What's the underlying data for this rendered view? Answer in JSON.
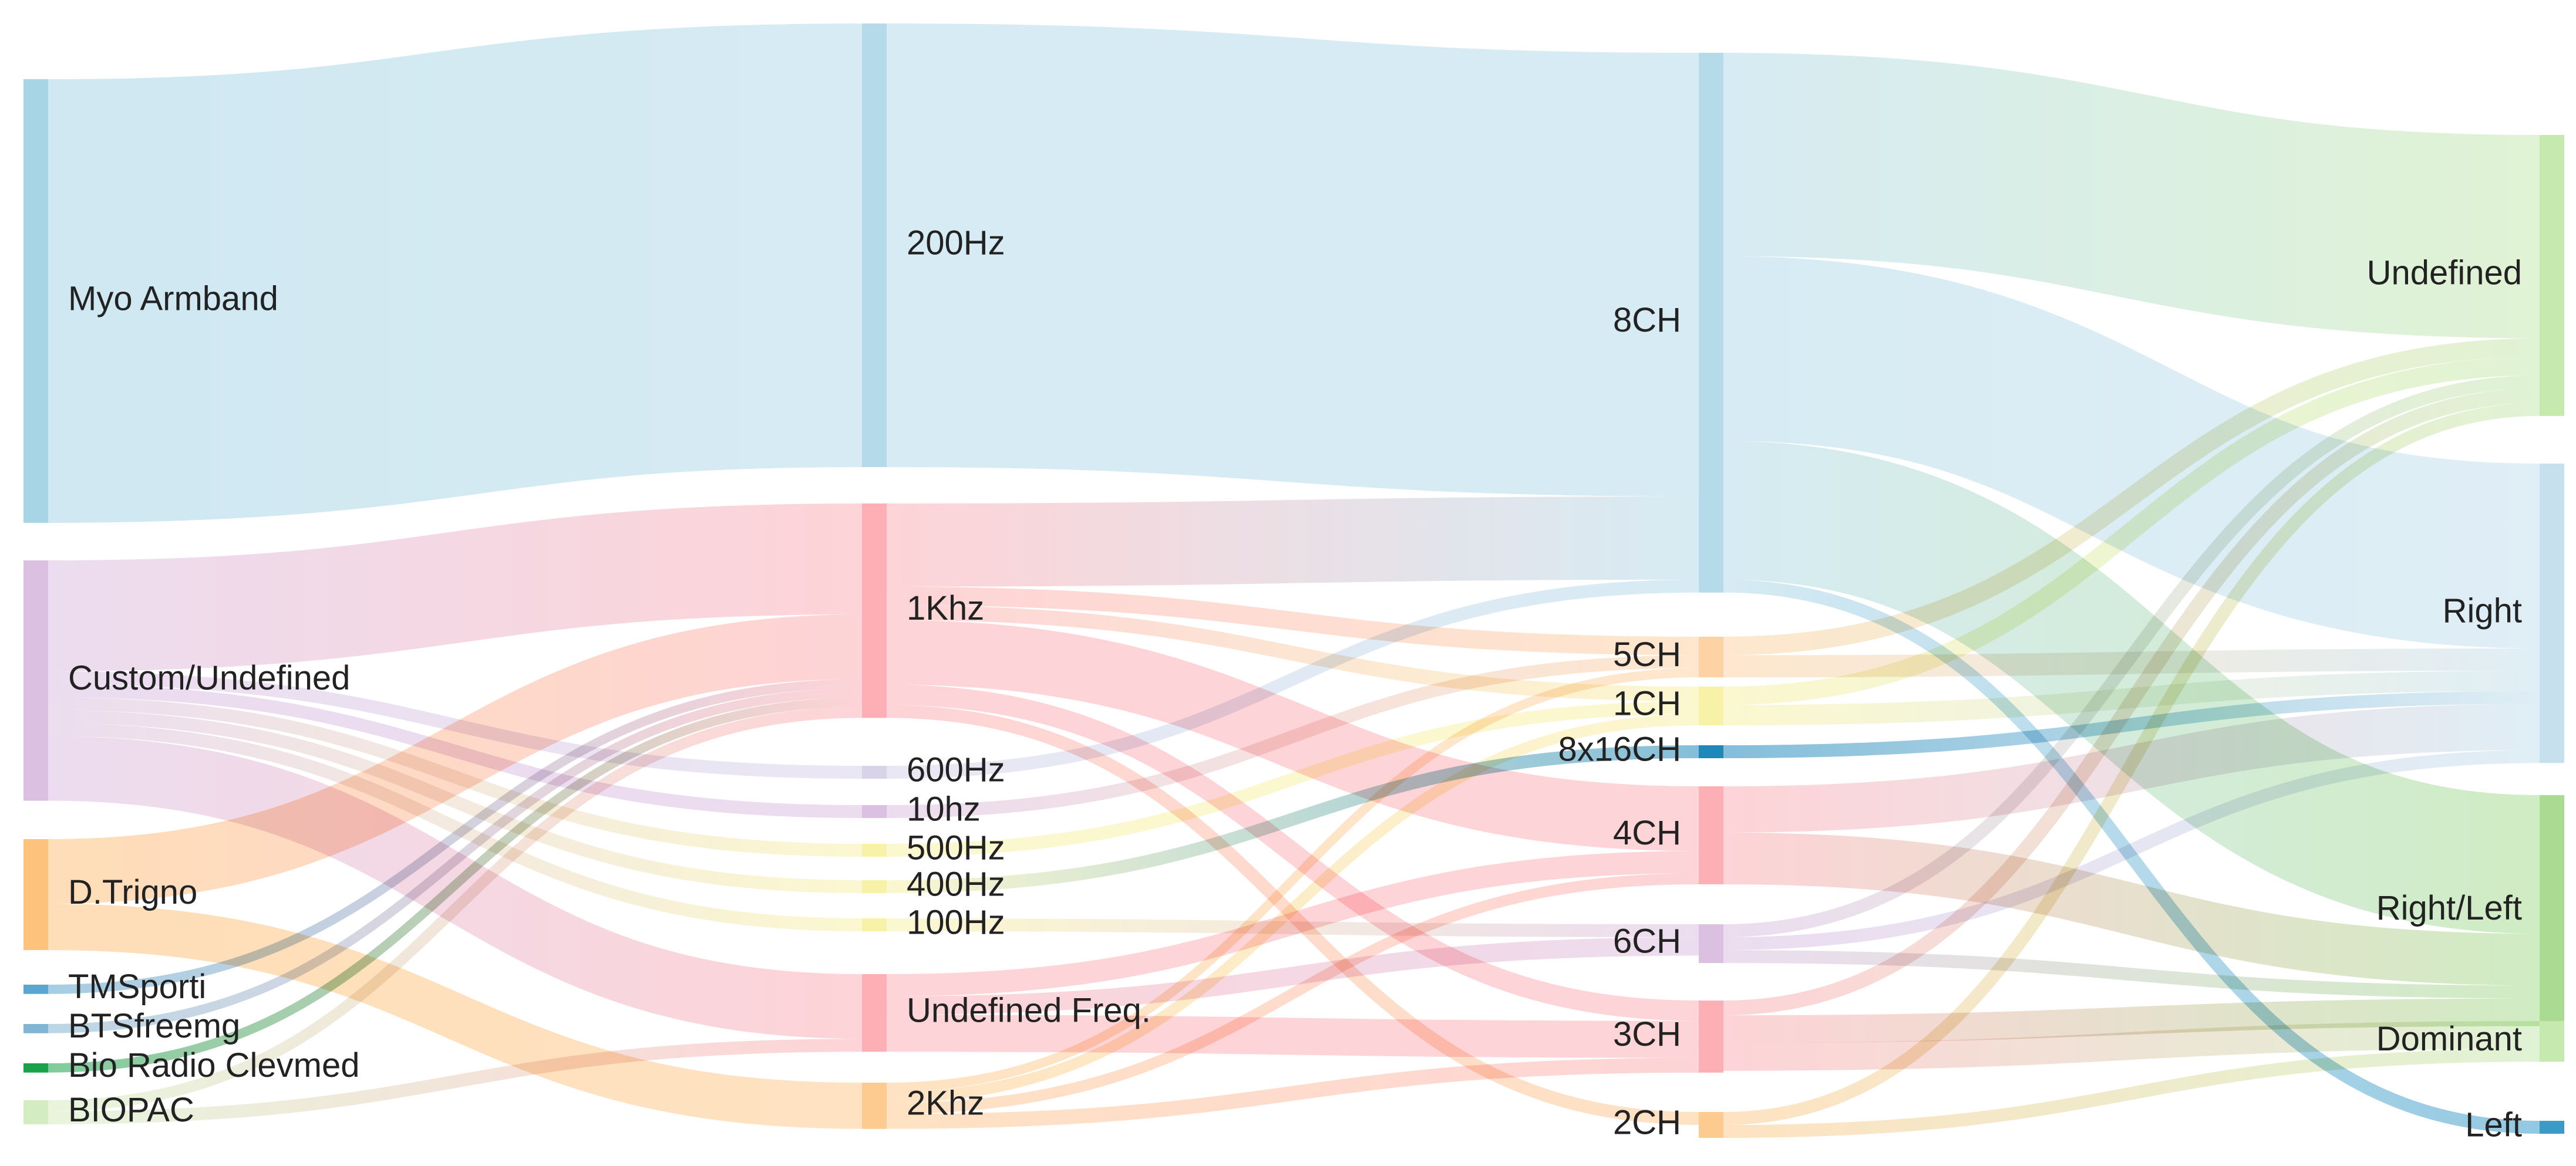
{
  "diagram": {
    "type": "sankey",
    "columns": [
      [
        "Myo Armband",
        "Custom/Undefined",
        "D.Trigno",
        "TMSporti",
        "BTSfreemg",
        "Bio Radio Clevmed",
        "BIOPAC"
      ],
      [
        "200Hz",
        "1Khz",
        "600Hz",
        "10hz",
        "500Hz",
        "400Hz",
        "100Hz",
        "Undefined Freq.",
        "2Khz"
      ],
      [
        "8CH",
        "5CH",
        "1CH",
        "8x16CH",
        "4CH",
        "6CH",
        "3CH",
        "2CH"
      ],
      [
        "Undefined",
        "Right",
        "Right/Left",
        "Dominant",
        "Left"
      ]
    ],
    "nodes": [
      {
        "id": "myo",
        "label": "Myo Armband",
        "color": "#a8d5e6"
      },
      {
        "id": "custom",
        "label": "Custom/Undefined",
        "color": "#dcc0e2"
      },
      {
        "id": "trigno",
        "label": "D.Trigno",
        "color": "#fdc27c"
      },
      {
        "id": "tmsporti",
        "label": "TMSporti",
        "color": "#5aa6d0"
      },
      {
        "id": "btsf",
        "label": "BTSfreemg",
        "color": "#82b5d3"
      },
      {
        "id": "bioradio",
        "label": "Bio Radio Clevmed",
        "color": "#1aa14a"
      },
      {
        "id": "biopac",
        "label": "BIOPAC",
        "color": "#d4edc0"
      },
      {
        "id": "f200",
        "label": "200Hz",
        "color": "#b5dbea"
      },
      {
        "id": "f1k",
        "label": "1Khz",
        "color": "#fcb0b6"
      },
      {
        "id": "f600",
        "label": "600Hz",
        "color": "#d9d3ea"
      },
      {
        "id": "f10",
        "label": "10hz",
        "color": "#dcc0e2"
      },
      {
        "id": "f500",
        "label": "500Hz",
        "color": "#f8f1a8"
      },
      {
        "id": "f400",
        "label": "400Hz",
        "color": "#f8f1a8"
      },
      {
        "id": "f100",
        "label": "100Hz",
        "color": "#f8f1a8"
      },
      {
        "id": "fund",
        "label": "Undefined Freq.",
        "color": "#fcb0b6"
      },
      {
        "id": "f2k",
        "label": "2Khz",
        "color": "#fdcb90"
      },
      {
        "id": "c8",
        "label": "8CH",
        "color": "#b5dbea"
      },
      {
        "id": "c5",
        "label": "5CH",
        "color": "#fdd3a5"
      },
      {
        "id": "c1",
        "label": "1CH",
        "color": "#f8f1a8"
      },
      {
        "id": "c816",
        "label": "8x16CH",
        "color": "#1f88bb"
      },
      {
        "id": "c4",
        "label": "4CH",
        "color": "#fcb0b6"
      },
      {
        "id": "c6",
        "label": "6CH",
        "color": "#dcc0e2"
      },
      {
        "id": "c3",
        "label": "3CH",
        "color": "#fcb0b6"
      },
      {
        "id": "c2",
        "label": "2CH",
        "color": "#fdcb90"
      },
      {
        "id": "undef",
        "label": "Undefined",
        "color": "#c6e9b0"
      },
      {
        "id": "right",
        "label": "Right",
        "color": "#c6e0ee"
      },
      {
        "id": "rl",
        "label": "Right/Left",
        "color": "#a9dc92"
      },
      {
        "id": "dominant",
        "label": "Dominant",
        "color": "#c6e9b0"
      },
      {
        "id": "left",
        "label": "Left",
        "color": "#3a9bc9"
      }
    ],
    "links": [
      {
        "source": "myo",
        "target": "f200",
        "value": 24
      },
      {
        "source": "custom",
        "target": "f1k",
        "value": 6
      },
      {
        "source": "custom",
        "target": "f600",
        "value": 0.7
      },
      {
        "source": "custom",
        "target": "f10",
        "value": 0.7
      },
      {
        "source": "custom",
        "target": "f500",
        "value": 0.7
      },
      {
        "source": "custom",
        "target": "f400",
        "value": 0.7
      },
      {
        "source": "custom",
        "target": "f100",
        "value": 0.7
      },
      {
        "source": "custom",
        "target": "fund",
        "value": 3.5
      },
      {
        "source": "trigno",
        "target": "f1k",
        "value": 3.5
      },
      {
        "source": "trigno",
        "target": "f2k",
        "value": 2.5
      },
      {
        "source": "tmsporti",
        "target": "f1k",
        "value": 0.5
      },
      {
        "source": "btsf",
        "target": "f1k",
        "value": 0.5
      },
      {
        "source": "bioradio",
        "target": "f1k",
        "value": 0.5
      },
      {
        "source": "biopac",
        "target": "fund",
        "value": 0.7
      },
      {
        "source": "biopac",
        "target": "f1k",
        "value": 0.6
      },
      {
        "source": "f200",
        "target": "c8",
        "value": 24
      },
      {
        "source": "f1k",
        "target": "c8",
        "value": 4.5
      },
      {
        "source": "f1k",
        "target": "c5",
        "value": 1
      },
      {
        "source": "f1k",
        "target": "c1",
        "value": 0.8
      },
      {
        "source": "f1k",
        "target": "c4",
        "value": 3.5
      },
      {
        "source": "f1k",
        "target": "c3",
        "value": 1.1
      },
      {
        "source": "f1k",
        "target": "c2",
        "value": 0.7
      },
      {
        "source": "f600",
        "target": "c8",
        "value": 0.7
      },
      {
        "source": "f10",
        "target": "c5",
        "value": 0.7
      },
      {
        "source": "f500",
        "target": "c1",
        "value": 0.7
      },
      {
        "source": "f400",
        "target": "c816",
        "value": 0.7
      },
      {
        "source": "f100",
        "target": "c6",
        "value": 0.7
      },
      {
        "source": "fund",
        "target": "c6",
        "value": 1
      },
      {
        "source": "fund",
        "target": "c3",
        "value": 2
      },
      {
        "source": "fund",
        "target": "c4",
        "value": 1.2
      },
      {
        "source": "f2k",
        "target": "c3",
        "value": 0.8
      },
      {
        "source": "f2k",
        "target": "c1",
        "value": 0.6
      },
      {
        "source": "f2k",
        "target": "c4",
        "value": 0.6
      },
      {
        "source": "f2k",
        "target": "c5",
        "value": 0.5
      },
      {
        "source": "c8",
        "target": "undef",
        "value": 11
      },
      {
        "source": "c8",
        "target": "right",
        "value": 10
      },
      {
        "source": "c8",
        "target": "rl",
        "value": 7.5
      },
      {
        "source": "c8",
        "target": "left",
        "value": 0.7
      },
      {
        "source": "c5",
        "target": "undef",
        "value": 1
      },
      {
        "source": "c5",
        "target": "right",
        "value": 1.2
      },
      {
        "source": "c1",
        "target": "undef",
        "value": 1
      },
      {
        "source": "c1",
        "target": "right",
        "value": 1.1
      },
      {
        "source": "c816",
        "target": "right",
        "value": 0.7
      },
      {
        "source": "c4",
        "target": "right",
        "value": 2.5
      },
      {
        "source": "c4",
        "target": "rl",
        "value": 2.8
      },
      {
        "source": "c6",
        "target": "undef",
        "value": 0.7
      },
      {
        "source": "c6",
        "target": "right",
        "value": 0.7
      },
      {
        "source": "c6",
        "target": "rl",
        "value": 0.7
      },
      {
        "source": "c3",
        "target": "undef",
        "value": 0.8
      },
      {
        "source": "c3",
        "target": "rl",
        "value": 1.5
      },
      {
        "source": "c3",
        "target": "dominant",
        "value": 1.5
      },
      {
        "source": "c2",
        "target": "undef",
        "value": 0.7
      },
      {
        "source": "c2",
        "target": "dominant",
        "value": 0.7
      }
    ]
  }
}
